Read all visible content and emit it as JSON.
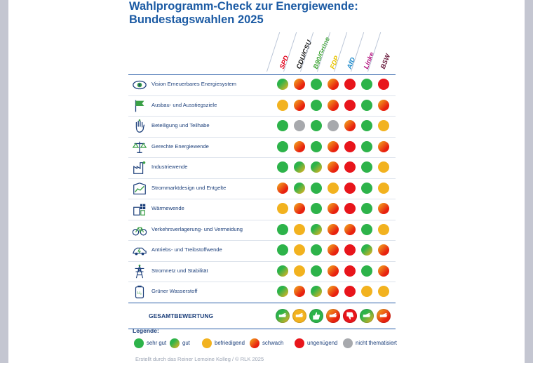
{
  "title": {
    "line1": "Wahlprogramm-Check zur Energiewende:",
    "line2": "Bundestagswahlen 2025"
  },
  "colors": {
    "title": "#1c5ba4",
    "sehr_gut": "#2db34a",
    "gut_a": "#2db34a",
    "gut_b": "#f2b21f",
    "befriedigend": "#f2b21f",
    "schwach_a": "#f2b21f",
    "schwach_b": "#e8210f",
    "ungenuegend": "#e8151b",
    "nicht_thematisiert": "#a7a9ad"
  },
  "chart_data": {
    "type": "table",
    "parties": [
      {
        "name": "SPD",
        "color": "#e2001a"
      },
      {
        "name": "CDU/CSU",
        "color": "#111111"
      },
      {
        "name": "B90/Grüne",
        "color": "#3fa535"
      },
      {
        "name": "FDP",
        "color": "#e8c300"
      },
      {
        "name": "AfD",
        "color": "#1c8acb"
      },
      {
        "name": "Linke",
        "color": "#b1097a"
      },
      {
        "name": "BSW",
        "color": "#6a1b3d"
      }
    ],
    "rows": [
      {
        "label": "Vision Erneuerbares Energiesystem",
        "icon": "eye-icon",
        "ratings": [
          "gut",
          "schwach",
          "sehr_gut",
          "schwach",
          "ungenuegend",
          "sehr_gut",
          "ungenuegend"
        ]
      },
      {
        "label": "Ausbau- und Ausstiegsziele",
        "icon": "flag-icon",
        "ratings": [
          "befriedigend",
          "schwach",
          "sehr_gut",
          "schwach",
          "ungenuegend",
          "sehr_gut",
          "schwach"
        ]
      },
      {
        "label": "Beteiligung und Teilhabe",
        "icon": "raised-hand-icon",
        "ratings": [
          "sehr_gut",
          "nicht_thematisiert",
          "sehr_gut",
          "nicht_thematisiert",
          "schwach",
          "sehr_gut",
          "befriedigend"
        ]
      },
      {
        "label": "Gerechte Energiewende",
        "icon": "scales-icon",
        "ratings": [
          "sehr_gut",
          "schwach",
          "sehr_gut",
          "schwach",
          "ungenuegend",
          "sehr_gut",
          "schwach"
        ]
      },
      {
        "label": "Industriewende",
        "icon": "factory-icon",
        "ratings": [
          "sehr_gut",
          "gut",
          "gut",
          "schwach",
          "ungenuegend",
          "sehr_gut",
          "befriedigend"
        ]
      },
      {
        "label": "Strommarktdesign und Entgelte",
        "icon": "market-chart-icon",
        "ratings": [
          "schwach",
          "gut",
          "sehr_gut",
          "befriedigend",
          "ungenuegend",
          "sehr_gut",
          "befriedigend"
        ]
      },
      {
        "label": "Wärmewende",
        "icon": "heat-building-icon",
        "ratings": [
          "befriedigend",
          "schwach",
          "sehr_gut",
          "schwach",
          "ungenuegend",
          "sehr_gut",
          "schwach"
        ]
      },
      {
        "label": "Verkehrsverlagerung- und Vermeidung",
        "icon": "bicycle-icon",
        "ratings": [
          "sehr_gut",
          "befriedigend",
          "gut",
          "schwach",
          "schwach",
          "sehr_gut",
          "befriedigend"
        ]
      },
      {
        "label": "Antriebs- und Treibstoffwende",
        "icon": "electric-car-icon",
        "ratings": [
          "sehr_gut",
          "befriedigend",
          "sehr_gut",
          "schwach",
          "ungenuegend",
          "gut",
          "schwach"
        ]
      },
      {
        "label": "Stromnetz und Stabilität",
        "icon": "power-pylon-icon",
        "ratings": [
          "gut",
          "befriedigend",
          "sehr_gut",
          "schwach",
          "ungenuegend",
          "sehr_gut",
          "schwach"
        ]
      },
      {
        "label": "Grüner Wasserstoff",
        "icon": "hydrogen-tank-icon",
        "ratings": [
          "gut",
          "schwach",
          "gut",
          "schwach",
          "ungenuegend",
          "befriedigend",
          "befriedigend"
        ]
      }
    ],
    "total": {
      "label": "GESAMTBEWERTUNG",
      "ratings": [
        "gut",
        "befriedigend",
        "sehr_gut",
        "schwach",
        "ungenuegend",
        "gut",
        "schwach"
      ],
      "icons": [
        "thumb-sideways-icon",
        "thumb-sideways-icon",
        "thumb-up-icon",
        "thumb-sideways-icon",
        "thumb-down-icon",
        "thumb-sideways-icon",
        "thumb-sideways-icon"
      ]
    }
  },
  "legend": {
    "title": "Legende:",
    "items": [
      {
        "key": "sehr_gut",
        "label": "sehr gut"
      },
      {
        "key": "gut",
        "label": "gut"
      },
      {
        "key": "befriedigend",
        "label": "befriedigend"
      },
      {
        "key": "schwach",
        "label": "schwach"
      },
      {
        "key": "ungenuegend",
        "label": "ungenügend"
      },
      {
        "key": "nicht_thematisiert",
        "label": "nicht thematisiert"
      }
    ]
  },
  "footer": "Erstellt durch das Reiner Lemoine Kolleg / © RLK 2025"
}
